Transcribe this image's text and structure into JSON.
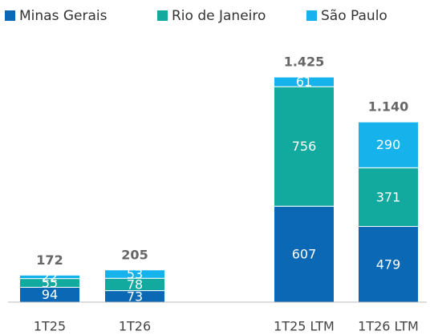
{
  "chart_data": {
    "type": "stacked_bar",
    "categories": [
      "1T25",
      "1T26",
      "1T25 LTM",
      "1T26 LTM"
    ],
    "series": [
      {
        "name": "Minas Gerais",
        "color": "#0a68b4",
        "values": [
          94,
          73,
          607,
          479
        ]
      },
      {
        "name": "Rio de Janeiro",
        "color": "#12a99e",
        "values": [
          55,
          78,
          756,
          371
        ]
      },
      {
        "name": "São Paulo",
        "color": "#16b2ec",
        "values": [
          22,
          53,
          61,
          290
        ]
      }
    ],
    "totals": {
      "values": [
        172,
        205,
        1425,
        1140
      ],
      "value_labels": [
        "172",
        "205",
        "1.425",
        "1.140"
      ]
    },
    "ylim": [
      0,
      1450
    ]
  }
}
